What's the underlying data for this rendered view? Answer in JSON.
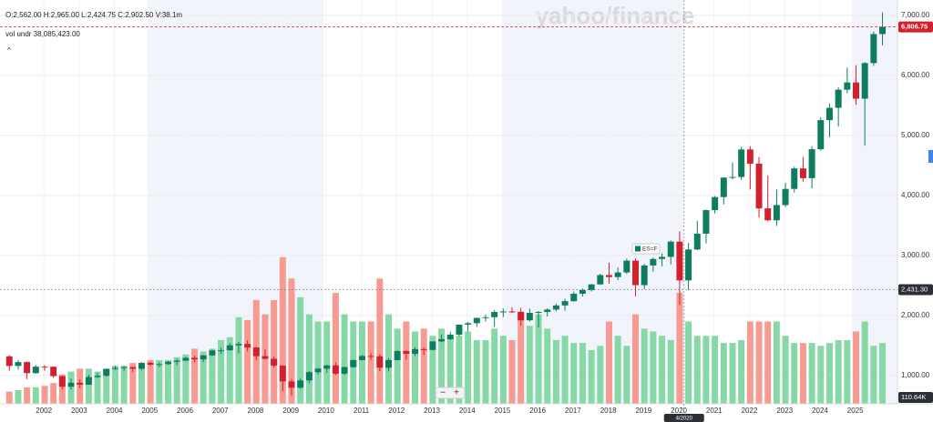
{
  "header": {
    "ohlcv": "O:2,562.00  H:2,965.00  L:2,424.75  C:2,902.50  V:38.1m",
    "indicator": "vol undr  38,085,423.00",
    "collapse": "^"
  },
  "watermark": "yahoo/finance",
  "zoom": {
    "minus": "−",
    "plus": "+"
  },
  "chart_data": {
    "type": "candlestick",
    "legend": "ES=F",
    "xlim": [
      2000.86,
      2026.3
    ],
    "xticks": [
      2002,
      2003,
      2004,
      2005,
      2006,
      2007,
      2008,
      2009,
      2010,
      2011,
      2012,
      2013,
      2014,
      2015,
      2016,
      2017,
      2018,
      2019,
      2020,
      2021,
      2022,
      2023,
      2024,
      2025
    ],
    "ylim": [
      590,
      7180
    ],
    "yticks": [
      {
        "value": 1000,
        "label": "1,000.00"
      },
      {
        "value": 2000,
        "label": "2,000.00"
      },
      {
        "value": 3000,
        "label": "3,000.00"
      },
      {
        "value": 4000,
        "label": "4,000.00"
      },
      {
        "value": 5000,
        "label": "5,000.00"
      },
      {
        "value": 6000,
        "label": "6,000.00"
      },
      {
        "value": 7000,
        "label": "7,000.00"
      }
    ],
    "y2lim": [
      0,
      110
    ],
    "up_color": "#0d7d5e",
    "down_color": "#d3202f",
    "vol_up_color": "#86d9a6",
    "vol_down_color": "#f79a92",
    "last_price": {
      "value": 6806.75,
      "label": "6,806.75"
    },
    "crosshair_price": {
      "value": 2431.3,
      "label": "2,431.30"
    },
    "crosshair_x": {
      "value": 2020.25,
      "label": "4/2020"
    },
    "volume_label": "110.64K",
    "x": [
      2001.0,
      2001.25,
      2001.5,
      2001.75,
      2002.0,
      2002.25,
      2002.5,
      2002.75,
      2003.0,
      2003.25,
      2003.5,
      2003.75,
      2004.0,
      2004.25,
      2004.5,
      2004.75,
      2005.0,
      2005.25,
      2005.5,
      2005.75,
      2006.0,
      2006.25,
      2006.5,
      2006.75,
      2007.0,
      2007.25,
      2007.5,
      2007.75,
      2008.0,
      2008.25,
      2008.5,
      2008.75,
      2009.0,
      2009.25,
      2009.5,
      2009.75,
      2010.0,
      2010.25,
      2010.5,
      2010.75,
      2011.0,
      2011.25,
      2011.5,
      2011.75,
      2012.0,
      2012.25,
      2012.5,
      2012.75,
      2013.0,
      2013.25,
      2013.5,
      2013.75,
      2014.0,
      2014.25,
      2014.5,
      2014.75,
      2015.0,
      2015.25,
      2015.5,
      2015.75,
      2016.0,
      2016.25,
      2016.5,
      2016.75,
      2017.0,
      2017.25,
      2017.5,
      2017.75,
      2018.0,
      2018.25,
      2018.5,
      2018.75,
      2019.0,
      2019.25,
      2019.5,
      2019.75,
      2020.0,
      2020.25,
      2020.5,
      2020.75,
      2021.0,
      2021.25,
      2021.5,
      2021.75,
      2022.0,
      2022.25,
      2022.5,
      2022.75,
      2023.0,
      2023.25,
      2023.5,
      2023.75,
      2024.0,
      2024.25,
      2024.5,
      2024.75,
      2025.0,
      2025.25,
      2025.5,
      2025.75
    ],
    "open": [
      1320,
      1160,
      1224,
      1040,
      1148,
      1147,
      990,
      815,
      880,
      848,
      975,
      996,
      1112,
      1126,
      1141,
      1114,
      1212,
      1181,
      1191,
      1229,
      1248,
      1295,
      1270,
      1336,
      1418,
      1421,
      1503,
      1527,
      1468,
      1323,
      1280,
      1166,
      903,
      798,
      919,
      1057,
      1115,
      1169,
      1031,
      1141,
      1258,
      1326,
      1321,
      1131,
      1258,
      1408,
      1362,
      1440,
      1426,
      1569,
      1606,
      1682,
      1848,
      1872,
      1960,
      1972,
      2059,
      2068,
      2063,
      1920,
      2044,
      2060,
      2099,
      2168,
      2239,
      2363,
      2423,
      2519,
      2674,
      2641,
      2718,
      2914,
      2507,
      2834,
      2942,
      2977,
      3231,
      2585,
      3100,
      3363,
      3756,
      3973,
      4298,
      4308,
      4766,
      4530,
      3785,
      3586,
      3840,
      4109,
      4450,
      4288,
      4770,
      5254,
      5460,
      5762,
      5882,
      5612,
      6205,
      6688
    ],
    "high": [
      1340,
      1260,
      1235,
      1175,
      1175,
      1150,
      1000,
      950,
      935,
      1015,
      1040,
      1115,
      1165,
      1160,
      1145,
      1220,
      1230,
      1220,
      1245,
      1275,
      1310,
      1330,
      1345,
      1430,
      1465,
      1540,
      1560,
      1590,
      1480,
      1440,
      1320,
      1170,
      945,
      955,
      1080,
      1130,
      1180,
      1220,
      1150,
      1265,
      1345,
      1370,
      1355,
      1290,
      1420,
      1420,
      1470,
      1470,
      1570,
      1685,
      1730,
      1850,
      1890,
      1965,
      2015,
      2090,
      2115,
      2135,
      2130,
      2115,
      2075,
      2120,
      2195,
      2280,
      2400,
      2450,
      2525,
      2695,
      2880,
      2800,
      2945,
      2950,
      2860,
      2965,
      3030,
      3250,
      3400,
      3210,
      3580,
      3765,
      3990,
      4300,
      4550,
      4810,
      4820,
      4640,
      4330,
      4100,
      4210,
      4480,
      4640,
      4820,
      5300,
      5530,
      5800,
      6130,
      6170,
      6220,
      6730,
      7050
    ],
    "low": [
      1080,
      1100,
      940,
      1030,
      1080,
      960,
      770,
      770,
      790,
      845,
      960,
      985,
      1090,
      1080,
      1060,
      1090,
      1160,
      1140,
      1180,
      1170,
      1245,
      1220,
      1225,
      1325,
      1360,
      1415,
      1370,
      1400,
      1255,
      1270,
      1130,
      740,
      665,
      780,
      870,
      1020,
      1045,
      1010,
      1010,
      1130,
      1250,
      1260,
      1075,
      1070,
      1255,
      1265,
      1325,
      1345,
      1420,
      1555,
      1590,
      1650,
      1735,
      1810,
      1900,
      1815,
      1975,
      2040,
      1830,
      1900,
      1800,
      1985,
      2070,
      2080,
      2230,
      2320,
      2400,
      2510,
      2530,
      2590,
      2690,
      2320,
      2440,
      2730,
      2820,
      2850,
      2175,
      2424,
      3090,
      3200,
      3700,
      3850,
      4270,
      4260,
      4100,
      3630,
      3570,
      3490,
      3810,
      4050,
      4230,
      4120,
      4750,
      4970,
      5150,
      5700,
      5510,
      4830,
      6160,
      6500
    ],
    "close": [
      1160,
      1224,
      1040,
      1148,
      1147,
      990,
      815,
      880,
      848,
      975,
      996,
      1112,
      1126,
      1141,
      1114,
      1212,
      1181,
      1191,
      1229,
      1248,
      1295,
      1270,
      1336,
      1418,
      1421,
      1503,
      1527,
      1468,
      1323,
      1280,
      1166,
      903,
      798,
      919,
      1057,
      1115,
      1169,
      1031,
      1141,
      1258,
      1326,
      1321,
      1131,
      1258,
      1408,
      1362,
      1440,
      1426,
      1569,
      1606,
      1682,
      1848,
      1872,
      1960,
      1972,
      2059,
      2068,
      2063,
      1920,
      2044,
      2060,
      2099,
      2168,
      2239,
      2363,
      2423,
      2519,
      2674,
      2641,
      2718,
      2914,
      2507,
      2834,
      2942,
      2977,
      3231,
      2585,
      3100,
      3363,
      3756,
      3973,
      4298,
      4308,
      4766,
      4530,
      3785,
      3586,
      3840,
      4109,
      4450,
      4288,
      4770,
      5254,
      5460,
      5762,
      5882,
      5612,
      6205,
      6688,
      6806
    ],
    "volume": [
      6,
      7,
      9,
      9,
      10,
      12,
      18,
      20,
      22,
      22,
      20,
      22,
      24,
      24,
      26,
      26,
      28,
      28,
      28,
      30,
      32,
      36,
      34,
      36,
      42,
      44,
      58,
      56,
      70,
      60,
      70,
      100,
      85,
      72,
      60,
      55,
      55,
      75,
      60,
      55,
      55,
      55,
      85,
      60,
      50,
      55,
      48,
      50,
      45,
      50,
      45,
      45,
      48,
      42,
      42,
      50,
      45,
      42,
      60,
      52,
      60,
      50,
      42,
      45,
      40,
      40,
      35,
      38,
      55,
      45,
      38,
      60,
      50,
      48,
      45,
      42,
      75,
      55,
      45,
      45,
      45,
      40,
      40,
      42,
      55,
      55,
      55,
      55,
      45,
      40,
      40,
      40,
      38,
      40,
      42,
      42,
      48,
      55,
      38,
      40
    ]
  }
}
